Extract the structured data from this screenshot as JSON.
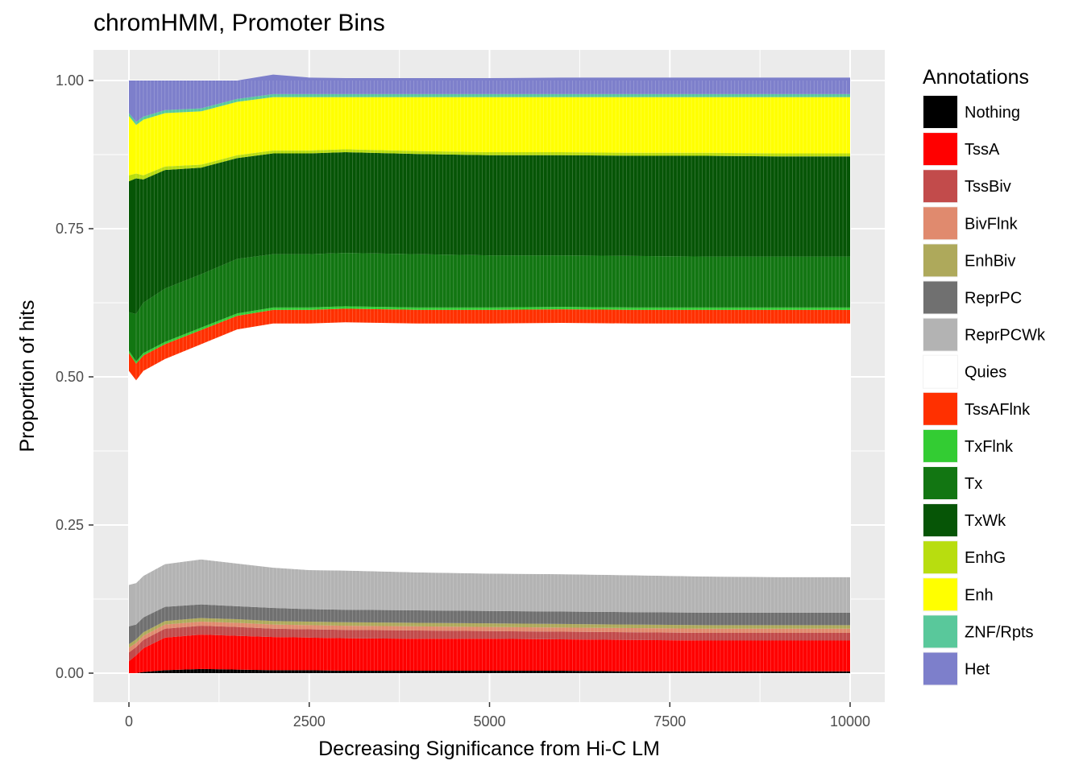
{
  "chart_data": {
    "type": "area",
    "title": "chromHMM, Promoter Bins",
    "xlabel": "Decreasing Significance from Hi-C LM",
    "ylabel": "Proportion of hits",
    "xlim": [
      0,
      10000
    ],
    "ylim": [
      0,
      1
    ],
    "x_ticks": [
      0,
      2500,
      5000,
      7500,
      10000
    ],
    "x_tick_labels": [
      "0",
      "2500",
      "5000",
      "7500",
      "10000"
    ],
    "y_ticks": [
      0,
      0.25,
      0.5,
      0.75,
      1.0
    ],
    "y_tick_labels": [
      "0.00",
      "0.25",
      "0.50",
      "0.75",
      "1.00"
    ],
    "stacked": true,
    "grid": true,
    "legend": {
      "title": "Annotations",
      "position": "right"
    },
    "x": [
      0,
      100,
      200,
      500,
      1000,
      1500,
      2000,
      2500,
      3000,
      4000,
      5000,
      6000,
      7000,
      8000,
      9000,
      10000
    ],
    "series": [
      {
        "name": "Nothing",
        "color": "#000000",
        "values": [
          0.0,
          0.0,
          0.002,
          0.005,
          0.007,
          0.006,
          0.005,
          0.005,
          0.004,
          0.004,
          0.004,
          0.004,
          0.003,
          0.003,
          0.003,
          0.003
        ]
      },
      {
        "name": "TssA",
        "color": "#FF0000",
        "values": [
          0.02,
          0.03,
          0.04,
          0.055,
          0.058,
          0.057,
          0.056,
          0.055,
          0.055,
          0.054,
          0.054,
          0.053,
          0.053,
          0.052,
          0.052,
          0.052
        ]
      },
      {
        "name": "TssBiv",
        "color": "#C24B4B",
        "values": [
          0.015,
          0.014,
          0.014,
          0.015,
          0.015,
          0.015,
          0.014,
          0.014,
          0.014,
          0.014,
          0.013,
          0.013,
          0.013,
          0.013,
          0.013,
          0.013
        ]
      },
      {
        "name": "BivFlnk",
        "color": "#E08A6E",
        "values": [
          0.008,
          0.007,
          0.007,
          0.007,
          0.007,
          0.007,
          0.007,
          0.007,
          0.007,
          0.007,
          0.007,
          0.007,
          0.007,
          0.007,
          0.007,
          0.007
        ]
      },
      {
        "name": "EnhBiv",
        "color": "#AEA95B",
        "values": [
          0.006,
          0.006,
          0.006,
          0.006,
          0.006,
          0.006,
          0.006,
          0.006,
          0.006,
          0.006,
          0.006,
          0.006,
          0.006,
          0.006,
          0.006,
          0.006
        ]
      },
      {
        "name": "ReprPC",
        "color": "#707070",
        "values": [
          0.03,
          0.025,
          0.025,
          0.024,
          0.023,
          0.022,
          0.022,
          0.021,
          0.021,
          0.021,
          0.021,
          0.021,
          0.021,
          0.021,
          0.021,
          0.021
        ]
      },
      {
        "name": "ReprPCWk",
        "color": "#B3B3B3",
        "values": [
          0.07,
          0.07,
          0.07,
          0.072,
          0.076,
          0.072,
          0.068,
          0.066,
          0.066,
          0.064,
          0.063,
          0.063,
          0.062,
          0.061,
          0.06,
          0.06
        ]
      },
      {
        "name": "Quies",
        "color": "#FFFFFF",
        "values": [
          0.361,
          0.342,
          0.346,
          0.346,
          0.363,
          0.395,
          0.412,
          0.416,
          0.419,
          0.42,
          0.422,
          0.424,
          0.425,
          0.427,
          0.428,
          0.428
        ]
      },
      {
        "name": "TssAFlnk",
        "color": "#FF3000",
        "values": [
          0.03,
          0.028,
          0.026,
          0.025,
          0.024,
          0.023,
          0.023,
          0.023,
          0.023,
          0.023,
          0.023,
          0.023,
          0.023,
          0.023,
          0.023,
          0.023
        ]
      },
      {
        "name": "TxFlnk",
        "color": "#33CC33",
        "values": [
          0.004,
          0.004,
          0.004,
          0.004,
          0.004,
          0.004,
          0.004,
          0.004,
          0.004,
          0.004,
          0.004,
          0.004,
          0.004,
          0.004,
          0.004,
          0.004
        ]
      },
      {
        "name": "Tx",
        "color": "#127612",
        "values": [
          0.065,
          0.08,
          0.085,
          0.09,
          0.09,
          0.092,
          0.09,
          0.09,
          0.09,
          0.09,
          0.088,
          0.087,
          0.087,
          0.086,
          0.086,
          0.086
        ]
      },
      {
        "name": "TxWk",
        "color": "#065506",
        "values": [
          0.221,
          0.229,
          0.208,
          0.2,
          0.18,
          0.17,
          0.17,
          0.17,
          0.17,
          0.169,
          0.169,
          0.169,
          0.169,
          0.17,
          0.169,
          0.169
        ]
      },
      {
        "name": "EnhG",
        "color": "#B8DD0F",
        "values": [
          0.01,
          0.008,
          0.007,
          0.006,
          0.005,
          0.005,
          0.005,
          0.005,
          0.005,
          0.005,
          0.005,
          0.005,
          0.005,
          0.005,
          0.005,
          0.005
        ]
      },
      {
        "name": "Enh",
        "color": "#FFFF00",
        "values": [
          0.1,
          0.082,
          0.094,
          0.09,
          0.09,
          0.09,
          0.09,
          0.09,
          0.088,
          0.091,
          0.093,
          0.093,
          0.094,
          0.094,
          0.095,
          0.095
        ]
      },
      {
        "name": "ZNF/Rpts",
        "color": "#59C89B",
        "values": [
          0.005,
          0.005,
          0.005,
          0.005,
          0.005,
          0.005,
          0.005,
          0.005,
          0.005,
          0.005,
          0.005,
          0.005,
          0.005,
          0.005,
          0.005,
          0.005
        ]
      },
      {
        "name": "Het",
        "color": "#7D7FCB",
        "values": [
          0.055,
          0.07,
          0.061,
          0.05,
          0.047,
          0.031,
          0.033,
          0.028,
          0.027,
          0.027,
          0.027,
          0.028,
          0.028,
          0.028,
          0.028,
          0.028
        ]
      }
    ]
  }
}
